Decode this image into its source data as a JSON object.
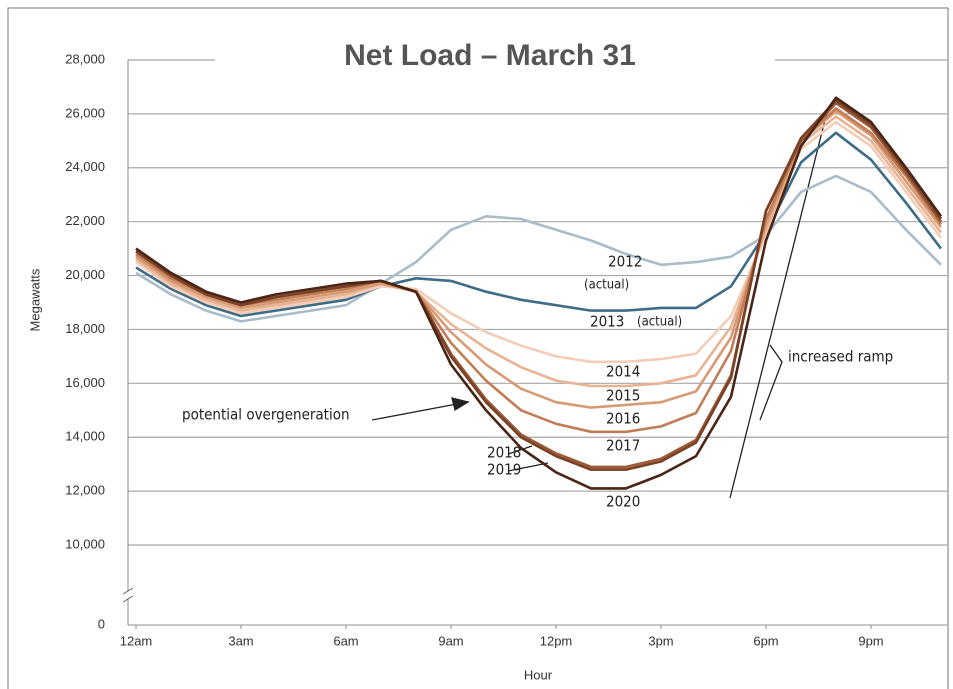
{
  "chart_data": {
    "type": "line",
    "title": "Net Load – March 31",
    "ylabel": "Megawatts",
    "xlabel": "Hour",
    "x": [
      0,
      1,
      2,
      3,
      4,
      5,
      6,
      7,
      8,
      9,
      10,
      11,
      12,
      13,
      14,
      15,
      16,
      17,
      18,
      19,
      20,
      21,
      22,
      23
    ],
    "xlim": [
      0,
      23
    ],
    "xticks": [
      {
        "value": 0,
        "label": "12am"
      },
      {
        "value": 3,
        "label": "3am"
      },
      {
        "value": 6,
        "label": "6am"
      },
      {
        "value": 9,
        "label": "9am"
      },
      {
        "value": 12,
        "label": "12pm"
      },
      {
        "value": 15,
        "label": "3pm"
      },
      {
        "value": 18,
        "label": "6pm"
      },
      {
        "value": 21,
        "label": "9pm"
      }
    ],
    "ylim": [
      0,
      28000
    ],
    "axis_break": [
      0,
      10000
    ],
    "yticks": [
      {
        "value": 0,
        "label": "0"
      },
      {
        "value": 10000,
        "label": "10,000"
      },
      {
        "value": 12000,
        "label": "12,000"
      },
      {
        "value": 14000,
        "label": "14,000"
      },
      {
        "value": 16000,
        "label": "16,000"
      },
      {
        "value": 18000,
        "label": "18,000"
      },
      {
        "value": 20000,
        "label": "20,000"
      },
      {
        "value": 22000,
        "label": "22,000"
      },
      {
        "value": 24000,
        "label": "24,000"
      },
      {
        "value": 26000,
        "label": "26,000"
      },
      {
        "value": 28000,
        "label": "28,000"
      }
    ],
    "grid": true,
    "series": [
      {
        "name": "2012",
        "color": "#a9bcc8",
        "values": [
          20100,
          19300,
          18700,
          18300,
          18500,
          18700,
          18900,
          19700,
          20500,
          21700,
          22200,
          22100,
          21700,
          21300,
          20800,
          20400,
          20500,
          20700,
          21500,
          23100,
          23700,
          23100,
          21700,
          20400
        ]
      },
      {
        "name": "2013",
        "color": "#3e6c87",
        "values": [
          20300,
          19500,
          18900,
          18500,
          18700,
          18900,
          19100,
          19600,
          19900,
          19800,
          19400,
          19100,
          18900,
          18700,
          18700,
          18800,
          18800,
          19600,
          21600,
          24200,
          25300,
          24300,
          22700,
          21000
        ]
      },
      {
        "name": "2014",
        "color": "#f3cdb7",
        "values": [
          20500,
          19600,
          19000,
          18600,
          18800,
          19000,
          19200,
          19600,
          19500,
          18600,
          17900,
          17400,
          17000,
          16800,
          16800,
          16900,
          17100,
          18500,
          21500,
          24700,
          25700,
          24800,
          23100,
          21400
        ]
      },
      {
        "name": "2015",
        "color": "#e8b393",
        "values": [
          20600,
          19700,
          19100,
          18700,
          18900,
          19100,
          19300,
          19700,
          19400,
          18200,
          17300,
          16600,
          16100,
          15900,
          15900,
          16000,
          16300,
          18100,
          21700,
          24900,
          25900,
          25000,
          23300,
          21600
        ]
      },
      {
        "name": "2016",
        "color": "#d89a74",
        "values": [
          20700,
          19800,
          19200,
          18800,
          19000,
          19200,
          19400,
          19700,
          19400,
          17900,
          16700,
          15800,
          15300,
          15100,
          15200,
          15300,
          15700,
          17700,
          21900,
          25000,
          26100,
          25200,
          23500,
          21800
        ]
      },
      {
        "name": "2017",
        "color": "#c17d55",
        "values": [
          20800,
          19900,
          19300,
          18900,
          19100,
          19300,
          19500,
          19800,
          19400,
          17500,
          16100,
          15000,
          14500,
          14200,
          14200,
          14400,
          14900,
          17200,
          22100,
          25000,
          26200,
          25300,
          23700,
          21900
        ]
      },
      {
        "name": "2018",
        "color": "#9b5a38",
        "values": [
          20900,
          20000,
          19300,
          18900,
          19200,
          19400,
          19600,
          19800,
          19400,
          17100,
          15400,
          14100,
          13400,
          12900,
          12900,
          13200,
          13900,
          16300,
          22400,
          25000,
          26400,
          25500,
          23800,
          22000
        ]
      },
      {
        "name": "2019",
        "color": "#7a4126",
        "values": [
          20900,
          20000,
          19300,
          18900,
          19200,
          19400,
          19600,
          19800,
          19400,
          17000,
          15300,
          14000,
          13300,
          12800,
          12800,
          13100,
          13800,
          16200,
          22400,
          25100,
          26500,
          25600,
          23900,
          22100
        ]
      },
      {
        "name": "2020",
        "color": "#4a2414",
        "values": [
          21000,
          20100,
          19400,
          19000,
          19300,
          19500,
          19700,
          19800,
          19400,
          16700,
          15000,
          13600,
          12700,
          12100,
          12100,
          12600,
          13300,
          15500,
          21300,
          24800,
          26600,
          25700,
          24000,
          22200
        ]
      }
    ],
    "annotations": [
      "(actual)",
      "(actual)",
      "potential overgeneration",
      "increased ramp"
    ]
  }
}
